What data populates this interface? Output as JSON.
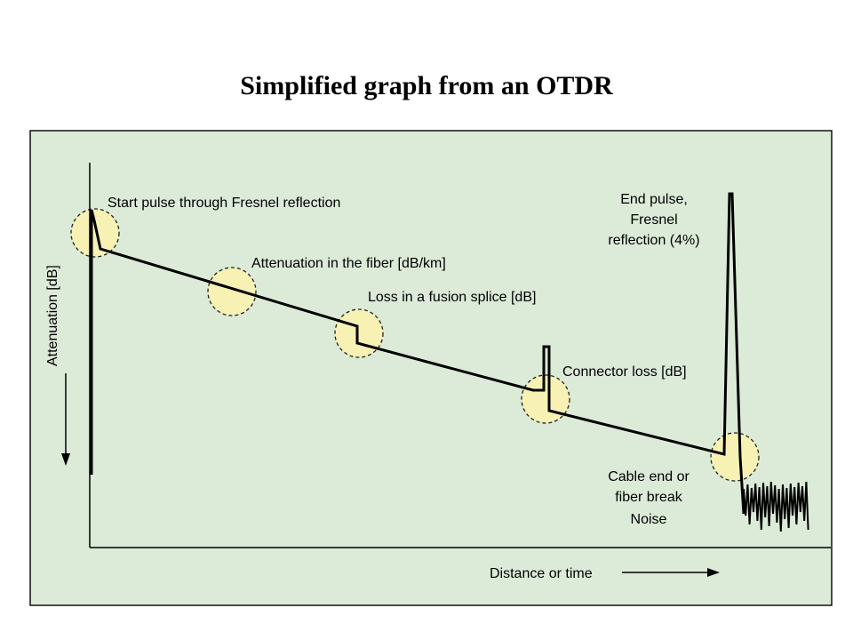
{
  "title": "Simplified graph from an OTDR",
  "colors": {
    "panel_background": "#dcebd8",
    "highlight_fill": "#f7f1b4",
    "trace": "#000000"
  },
  "axes": {
    "y_label": "Attenuation [dB]",
    "x_label": "Distance or time"
  },
  "annotations": {
    "start_pulse": "Start pulse through Fresnel reflection",
    "attenuation_fiber": "Attenuation in the fiber [dB/km]",
    "fusion_splice": "Loss in a fusion splice [dB]",
    "connector_loss": "Connector loss [dB]",
    "end_pulse": [
      "End pulse,",
      "Fresnel",
      "reflection (4%)"
    ],
    "cable_end": [
      "Cable end or",
      "fiber break"
    ],
    "noise": "Noise"
  }
}
